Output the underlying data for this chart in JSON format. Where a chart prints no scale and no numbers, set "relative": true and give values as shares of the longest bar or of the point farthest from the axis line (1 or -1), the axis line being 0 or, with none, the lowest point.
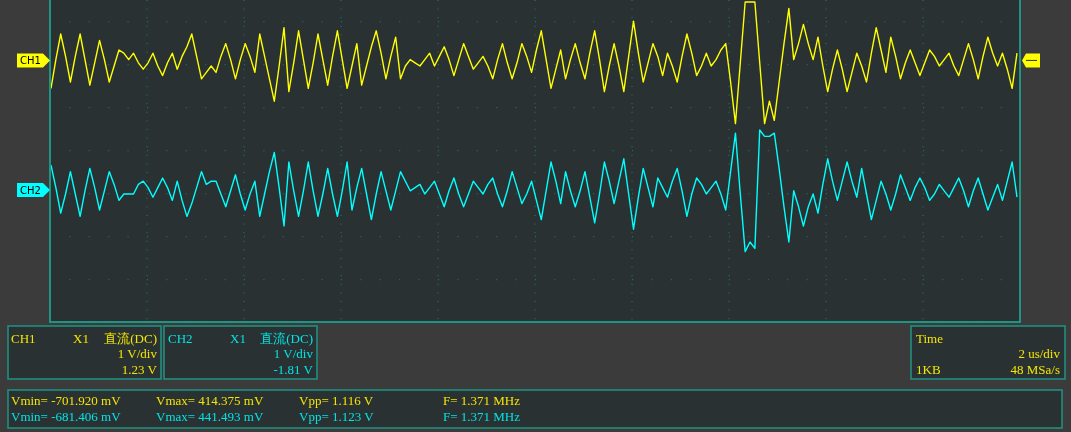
{
  "chart_data": {
    "type": "line",
    "relative": true,
    "grid": true,
    "categories": [
      null,
      null,
      null,
      null,
      null,
      null,
      null,
      null,
      null,
      null,
      null,
      null,
      null,
      null,
      null,
      null,
      null,
      null,
      null,
      null,
      null,
      null,
      null,
      null,
      null,
      null,
      null,
      null,
      null,
      null,
      null,
      null,
      null,
      null,
      null,
      null,
      null,
      null,
      null,
      null,
      null,
      null,
      null,
      null,
      null,
      null,
      null,
      null,
      null,
      null,
      null,
      null,
      null,
      null,
      null,
      null,
      null,
      null,
      null,
      null,
      null,
      null,
      null,
      null,
      null,
      null,
      null,
      null,
      null,
      null,
      null,
      null,
      null,
      null,
      null,
      null,
      null,
      null,
      null,
      null,
      null,
      null,
      null,
      null,
      null,
      null,
      null,
      null,
      null,
      null,
      null,
      null,
      null,
      null,
      null,
      null,
      null,
      null,
      null,
      null,
      null,
      null,
      null,
      null,
      null,
      null,
      null,
      null,
      null,
      null,
      null,
      null,
      null,
      null,
      null,
      null,
      null,
      null,
      null,
      null,
      null,
      null,
      null,
      null,
      null,
      null,
      null,
      null,
      null,
      null,
      null,
      null,
      null,
      null,
      null,
      null,
      null,
      null,
      null,
      null,
      null,
      null,
      null,
      null,
      null,
      null,
      null,
      null,
      null,
      null,
      null,
      null,
      null,
      null,
      null,
      null,
      null,
      null,
      null,
      null,
      null,
      null,
      null,
      null,
      null,
      null,
      null,
      null,
      null,
      null,
      null,
      null,
      null,
      null,
      null,
      null,
      null,
      null,
      null,
      null,
      null,
      null,
      null,
      null,
      null,
      null,
      null,
      null,
      null,
      null,
      null,
      null,
      null,
      null,
      null,
      null,
      null,
      null,
      null,
      null
    ],
    "series": [
      {
        "name": "CH1",
        "color": "#ffff00",
        "values": [
          0.73,
          0.82,
          0.9,
          0.83,
          0.75,
          0.83,
          0.9,
          0.82,
          0.74,
          0.81,
          0.88,
          0.82,
          0.75,
          0.8,
          0.85,
          0.84,
          0.82,
          0.84,
          0.81,
          0.79,
          0.81,
          0.84,
          0.8,
          0.77,
          0.81,
          0.84,
          0.79,
          0.83,
          0.86,
          0.9,
          0.83,
          0.76,
          0.78,
          0.8,
          0.78,
          0.83,
          0.87,
          0.82,
          0.76,
          0.82,
          0.87,
          0.83,
          0.78,
          0.9,
          0.83,
          0.76,
          0.69,
          0.8,
          0.92,
          0.72,
          0.81,
          0.91,
          0.82,
          0.73,
          0.81,
          0.9,
          0.82,
          0.74,
          0.83,
          0.91,
          0.82,
          0.73,
          0.8,
          0.87,
          0.74,
          0.8,
          0.86,
          0.91,
          0.84,
          0.76,
          0.83,
          0.89,
          0.76,
          0.8,
          0.82,
          0.81,
          0.8,
          0.82,
          0.84,
          0.8,
          0.83,
          0.86,
          0.82,
          0.77,
          0.82,
          0.87,
          0.83,
          0.79,
          0.81,
          0.83,
          0.8,
          0.76,
          0.82,
          0.87,
          0.81,
          0.76,
          0.81,
          0.87,
          0.83,
          0.78,
          0.85,
          0.91,
          0.82,
          0.73,
          0.79,
          0.85,
          0.76,
          0.82,
          0.87,
          0.81,
          0.76,
          0.84,
          0.91,
          0.82,
          0.72,
          0.8,
          0.87,
          0.8,
          0.72,
          0.83,
          0.94,
          0.84,
          0.75,
          0.81,
          0.87,
          0.83,
          0.77,
          0.84,
          0.8,
          0.75,
          0.83,
          0.9,
          0.84,
          0.77,
          0.8,
          0.84,
          0.8,
          0.82,
          0.85,
          0.87,
          0.75,
          0.62,
          0.81,
          1.0,
          1.0,
          1.0,
          0.81,
          0.62,
          0.69,
          0.63,
          0.75,
          0.87,
          0.98,
          0.82,
          0.87,
          0.93,
          0.87,
          0.82,
          0.89,
          0.8,
          0.72,
          0.79,
          0.85,
          0.79,
          0.72,
          0.78,
          0.84,
          0.8,
          0.75,
          0.84,
          0.92,
          0.85,
          0.78,
          0.89,
          0.83,
          0.76,
          0.81,
          0.85,
          0.81,
          0.77,
          0.81,
          0.85,
          0.83,
          0.8,
          0.82,
          0.84,
          0.8,
          0.77,
          0.82,
          0.87,
          0.82,
          0.76,
          0.83,
          0.89,
          0.84,
          0.8,
          0.84,
          0.79,
          0.73,
          0.84
        ]
      },
      {
        "name": "CH2",
        "color": "#00ffff",
        "values": [
          0.49,
          0.42,
          0.34,
          0.4,
          0.47,
          0.4,
          0.33,
          0.41,
          0.48,
          0.42,
          0.35,
          0.41,
          0.47,
          0.43,
          0.38,
          0.4,
          0.4,
          0.4,
          0.43,
          0.44,
          0.42,
          0.39,
          0.42,
          0.45,
          0.42,
          0.38,
          0.44,
          0.38,
          0.33,
          0.37,
          0.42,
          0.47,
          0.43,
          0.44,
          0.44,
          0.4,
          0.36,
          0.41,
          0.46,
          0.4,
          0.35,
          0.4,
          0.44,
          0.33,
          0.4,
          0.47,
          0.53,
          0.42,
          0.3,
          0.5,
          0.41,
          0.33,
          0.41,
          0.5,
          0.41,
          0.33,
          0.4,
          0.48,
          0.4,
          0.33,
          0.41,
          0.5,
          0.35,
          0.42,
          0.48,
          0.4,
          0.32,
          0.4,
          0.47,
          0.41,
          0.35,
          0.41,
          0.47,
          0.44,
          0.41,
          0.42,
          0.43,
          0.4,
          0.42,
          0.44,
          0.4,
          0.36,
          0.41,
          0.45,
          0.4,
          0.36,
          0.4,
          0.44,
          0.42,
          0.4,
          0.43,
          0.45,
          0.4,
          0.36,
          0.41,
          0.47,
          0.42,
          0.37,
          0.4,
          0.44,
          0.38,
          0.32,
          0.41,
          0.5,
          0.44,
          0.37,
          0.47,
          0.41,
          0.36,
          0.41,
          0.47,
          0.39,
          0.31,
          0.4,
          0.5,
          0.44,
          0.37,
          0.44,
          0.51,
          0.4,
          0.29,
          0.39,
          0.48,
          0.42,
          0.36,
          0.45,
          0.42,
          0.39,
          0.44,
          0.48,
          0.41,
          0.33,
          0.4,
          0.45,
          0.43,
          0.4,
          0.42,
          0.44,
          0.4,
          0.35,
          0.47,
          0.59,
          0.4,
          0.22,
          0.25,
          0.23,
          0.6,
          0.58,
          0.58,
          0.59,
          0.48,
          0.36,
          0.25,
          0.41,
          0.36,
          0.3,
          0.36,
          0.4,
          0.34,
          0.43,
          0.51,
          0.44,
          0.38,
          0.44,
          0.5,
          0.44,
          0.39,
          0.48,
          0.4,
          0.32,
          0.38,
          0.44,
          0.4,
          0.35,
          0.4,
          0.46,
          0.42,
          0.38,
          0.42,
          0.45,
          0.42,
          0.38,
          0.4,
          0.43,
          0.41,
          0.39,
          0.42,
          0.45,
          0.41,
          0.36,
          0.41,
          0.45,
          0.4,
          0.35,
          0.39,
          0.43,
          0.38,
          0.44,
          0.5,
          0.39
        ]
      }
    ],
    "annotations": [
      "CH1",
      "X1",
      "直流(DC)",
      "1 V/div",
      "1.23 V",
      "CH2",
      "X1",
      "直流(DC)",
      "1 V/div",
      "-1.81 V",
      "Time",
      "2 us/div",
      "1KB",
      "48 MSa/s",
      "Vmin= -701.920 mV",
      "Vmax= 414.375 mV",
      "Vpp= 1.116 V",
      "F= 1.371 MHz",
      "Vmin= -681.406 mV",
      "Vmax= 441.493 mV",
      "Vpp= 1.123 V",
      "F= 1.371 MHz"
    ]
  }
}
